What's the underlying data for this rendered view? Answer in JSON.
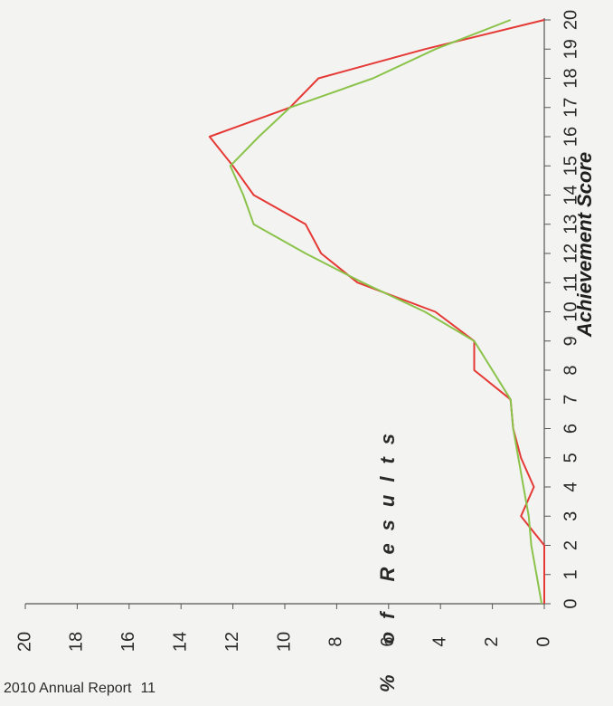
{
  "footer": {
    "report": "2010 Annual Report",
    "page": "11"
  },
  "chart_data": {
    "type": "line",
    "orientation": "rotated-90-clockwise",
    "xlabel": "Achievement Score",
    "ylabel": "% of Results",
    "x": [
      0,
      1,
      2,
      3,
      4,
      5,
      6,
      7,
      8,
      9,
      10,
      11,
      12,
      13,
      14,
      15,
      16,
      17,
      18,
      19,
      20
    ],
    "xlim": [
      0,
      20
    ],
    "ylim": [
      0,
      20
    ],
    "yticks": [
      0,
      2,
      4,
      6,
      8,
      10,
      12,
      14,
      16,
      18,
      20
    ],
    "grid": false,
    "series": [
      {
        "color": "#e53935",
        "values": [
          0,
          0,
          0,
          0.9,
          0.4,
          0.9,
          1.2,
          1.3,
          2.7,
          2.7,
          4.2,
          7.2,
          8.6,
          9.2,
          11.2,
          12,
          12.9,
          9.8,
          8.7,
          4.6,
          0
        ]
      },
      {
        "color": "#8bc34a",
        "values": [
          0.1,
          0.3,
          0.5,
          0.6,
          0.8,
          1.0,
          1.2,
          1.3,
          2.0,
          2.7,
          4.6,
          7.0,
          9.2,
          11.2,
          11.6,
          12.1,
          11.0,
          9.8,
          6.6,
          4.2,
          1.3
        ]
      }
    ]
  }
}
